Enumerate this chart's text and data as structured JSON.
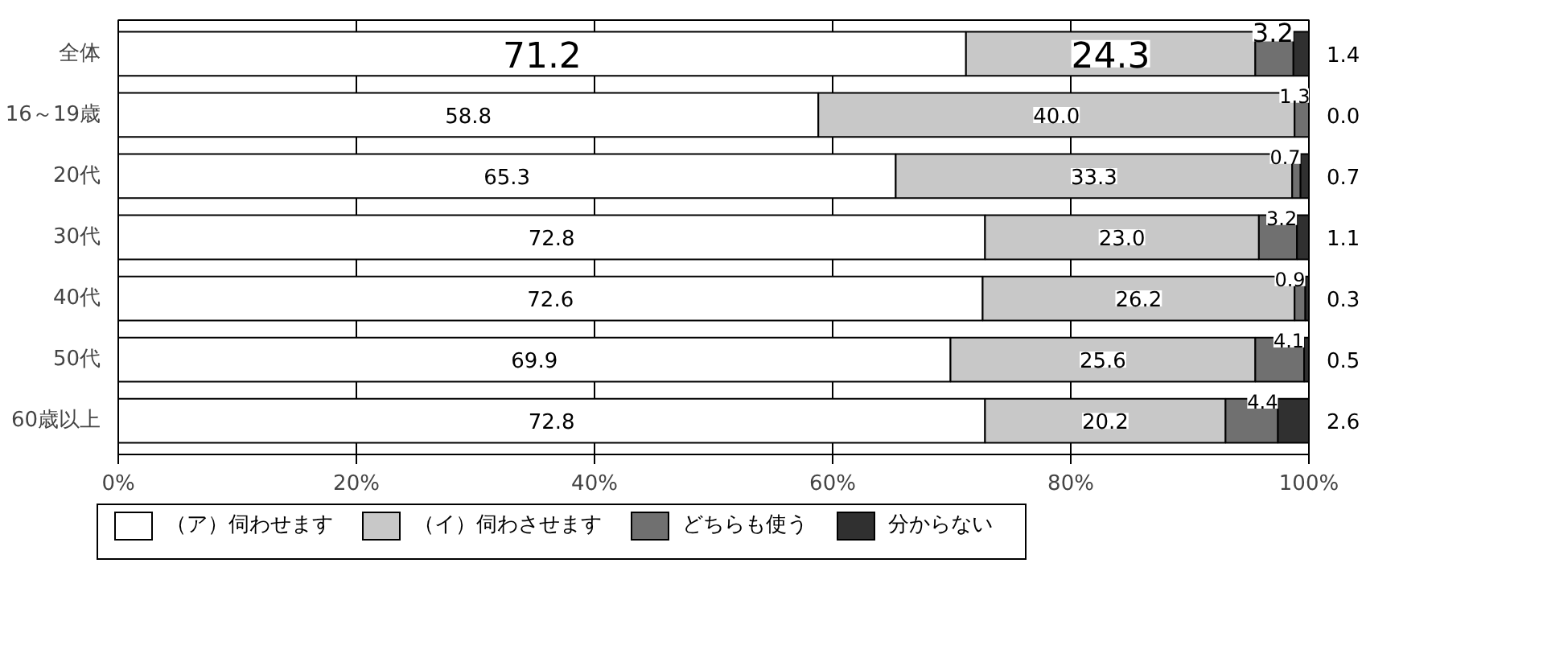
{
  "chart_data": {
    "type": "bar",
    "orientation": "horizontal",
    "stacked": true,
    "categories": [
      "全体",
      "16～19歳",
      "20代",
      "30代",
      "40代",
      "50代",
      "60歳以上"
    ],
    "series": [
      {
        "name": "（ア）伺わせます",
        "color": "#ffffff",
        "values": [
          71.2,
          58.8,
          65.3,
          72.8,
          72.6,
          69.9,
          72.8
        ],
        "value_labels": [
          "71.2",
          "58.8",
          "65.3",
          "72.8",
          "72.6",
          "69.9",
          "72.8"
        ]
      },
      {
        "name": "（イ）伺わさせます",
        "color": "#c8c8c8",
        "values": [
          24.3,
          40.0,
          33.3,
          23.0,
          26.2,
          25.6,
          20.2
        ],
        "value_labels": [
          "24.3",
          "40.0",
          "33.3",
          "23.0",
          "26.2",
          "25.6",
          "20.2"
        ]
      },
      {
        "name": "どちらも使う",
        "color": "#707070",
        "values": [
          3.2,
          1.3,
          0.7,
          3.2,
          0.9,
          4.1,
          4.4
        ],
        "value_labels": [
          "3.2",
          "1.3",
          "0.7",
          "3.2",
          "0.9",
          "4.1",
          "4.4"
        ]
      },
      {
        "name": "分からない",
        "color": "#303030",
        "values": [
          1.4,
          0.0,
          0.7,
          1.1,
          0.3,
          0.5,
          2.6
        ],
        "value_labels": [
          "1.4",
          "0.0",
          "0.7",
          "1.1",
          "0.3",
          "0.5",
          "2.6"
        ]
      }
    ],
    "xlim": [
      0,
      100
    ],
    "xticks": [
      {
        "value": 0,
        "label": "0%"
      },
      {
        "value": 20,
        "label": "20%"
      },
      {
        "value": 40,
        "label": "40%"
      },
      {
        "value": 60,
        "label": "60%"
      },
      {
        "value": 80,
        "label": "80%"
      },
      {
        "value": 100,
        "label": "100%"
      }
    ],
    "grid": "x",
    "legend": "bottom",
    "data_labels": true
  }
}
